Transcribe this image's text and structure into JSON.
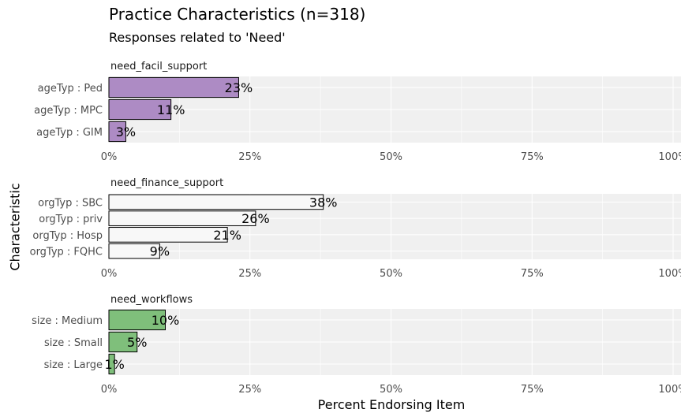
{
  "chart_data": {
    "type": "bar",
    "orientation": "horizontal",
    "title": "Practice Characteristics (n=318)",
    "subtitle": "Responses related to 'Need'",
    "xlabel": "Percent Endorsing Item",
    "ylabel": "Characteristic",
    "xlim": [
      0,
      100
    ],
    "x_ticks": [
      "0%",
      "25%",
      "50%",
      "75%",
      "100%"
    ],
    "grid": true,
    "panels": [
      {
        "name": "need_facil_support",
        "color": "#ad8bc4",
        "categories": [
          "ageTyp : Ped",
          "ageTyp : MPC",
          "ageTyp : GIM"
        ],
        "values": [
          23,
          11,
          3
        ],
        "labels": [
          "23%",
          "11%",
          "3%"
        ]
      },
      {
        "name": "need_finance_support",
        "color": "#f8f8f8",
        "categories": [
          "orgTyp : SBC",
          "orgTyp : priv",
          "orgTyp : Hosp",
          "orgTyp : FQHC"
        ],
        "values": [
          38,
          26,
          21,
          9
        ],
        "labels": [
          "38%",
          "26%",
          "21%",
          "9%"
        ]
      },
      {
        "name": "need_workflows",
        "color": "#7fbf7b",
        "categories": [
          "size : Medium",
          "size : Small",
          "size : Large"
        ],
        "values": [
          10,
          5,
          1
        ],
        "labels": [
          "10%",
          "5%",
          "1%"
        ]
      }
    ]
  }
}
